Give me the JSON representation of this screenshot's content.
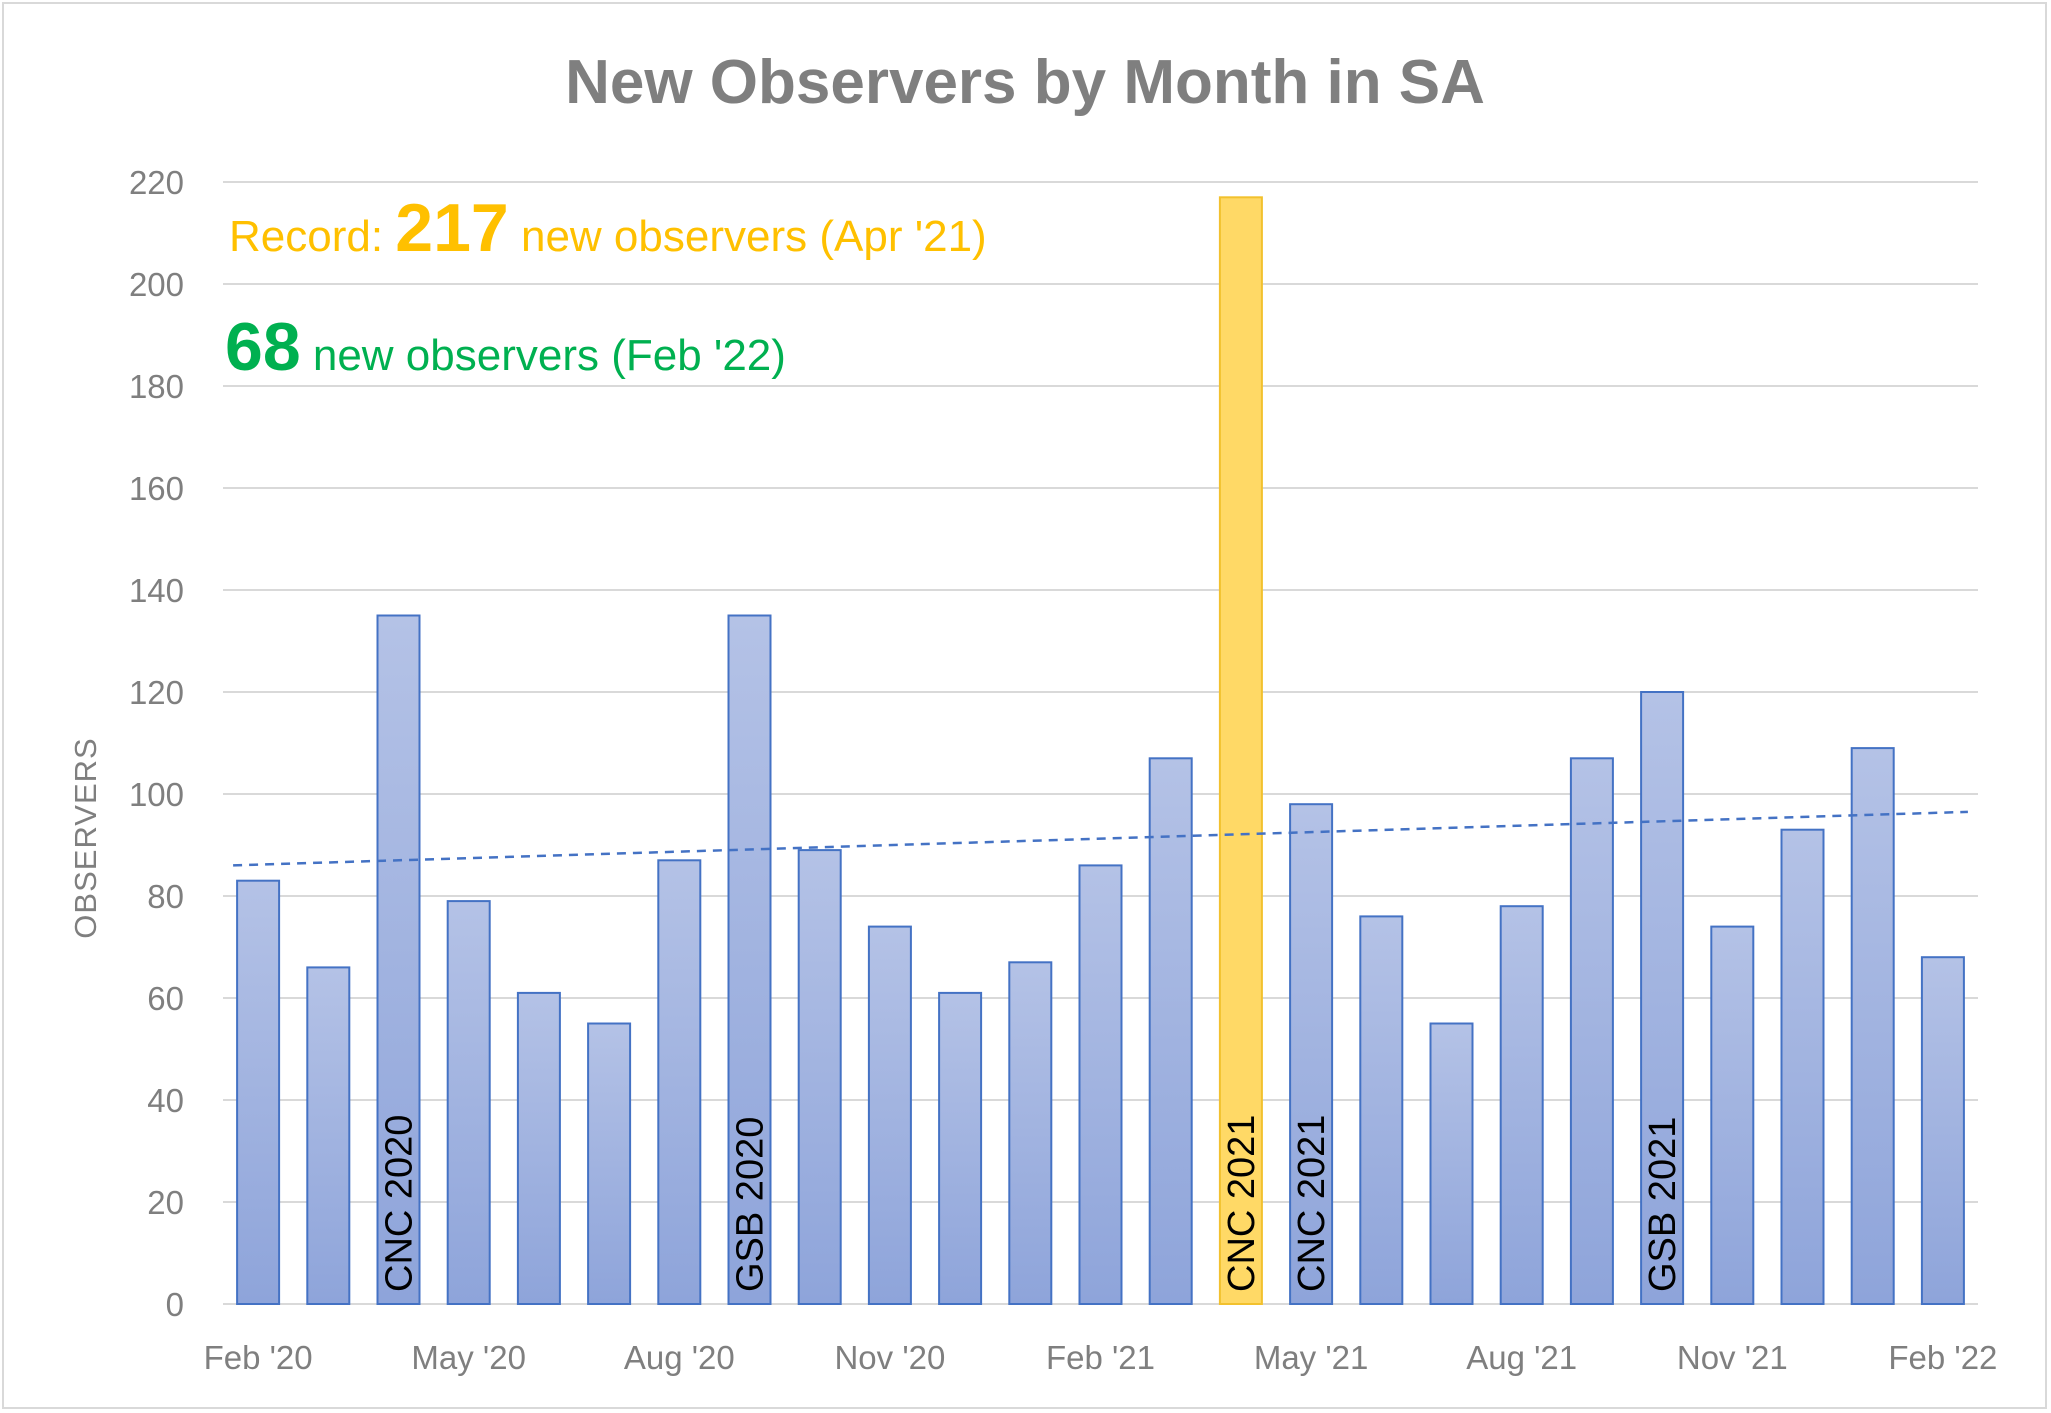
{
  "chart_data": {
    "type": "bar",
    "title": "New Observers by Month in SA",
    "ylabel": "OBSERVERS",
    "xlabel": "",
    "ylim": [
      0,
      220
    ],
    "yticks": [
      0,
      20,
      40,
      60,
      80,
      100,
      120,
      140,
      160,
      180,
      200,
      220
    ],
    "grid": true,
    "categories": [
      "Feb '20",
      "Mar '20",
      "Apr '20",
      "May '20",
      "Jun '20",
      "Jul '20",
      "Aug '20",
      "Sep '20",
      "Oct '20",
      "Nov '20",
      "Dec '20",
      "Jan '21",
      "Feb '21",
      "Mar '21",
      "Apr '21",
      "May '21",
      "Jun '21",
      "Jul '21",
      "Aug '21",
      "Sep '21",
      "Oct '21",
      "Nov '21",
      "Dec '21",
      "Jan '22",
      "Feb '22"
    ],
    "x_tick_labels": [
      "Feb '20",
      "May '20",
      "Aug '20",
      "Nov '20",
      "Feb '21",
      "May '21",
      "Aug '21",
      "Nov '21",
      "Feb '22"
    ],
    "values": [
      83,
      66,
      135,
      79,
      61,
      55,
      87,
      135,
      89,
      74,
      61,
      67,
      86,
      107,
      217,
      98,
      76,
      55,
      78,
      107,
      120,
      74,
      93,
      109,
      68
    ],
    "highlight_index": 14,
    "colors": {
      "bar_fill_top": "#b4c2e6",
      "bar_fill_bottom": "#8ea4da",
      "bar_stroke": "#4472c4",
      "highlight_fill": "#ffd966",
      "highlight_stroke": "#f2c12e",
      "trendline": "#4472c4",
      "gridline": "#d9d9d9",
      "record_text": "#ffc000",
      "current_text": "#00b050"
    },
    "trendline": {
      "style": "dashed",
      "start_value": 86,
      "end_value": 96.5
    },
    "bar_labels": [
      {
        "index": 2,
        "text": "CNC 2020"
      },
      {
        "index": 7,
        "text": "GSB 2020"
      },
      {
        "index": 14,
        "text": "CNC 2021"
      },
      {
        "index": 15,
        "text": "CNC 2021"
      },
      {
        "index": 20,
        "text": "GSB 2021"
      }
    ],
    "annotations": {
      "record": {
        "prefix": "Record: ",
        "number": "217",
        "suffix": " new observers (Apr '21)"
      },
      "current": {
        "number": "68",
        "suffix": " new observers (Feb '22)"
      }
    }
  }
}
